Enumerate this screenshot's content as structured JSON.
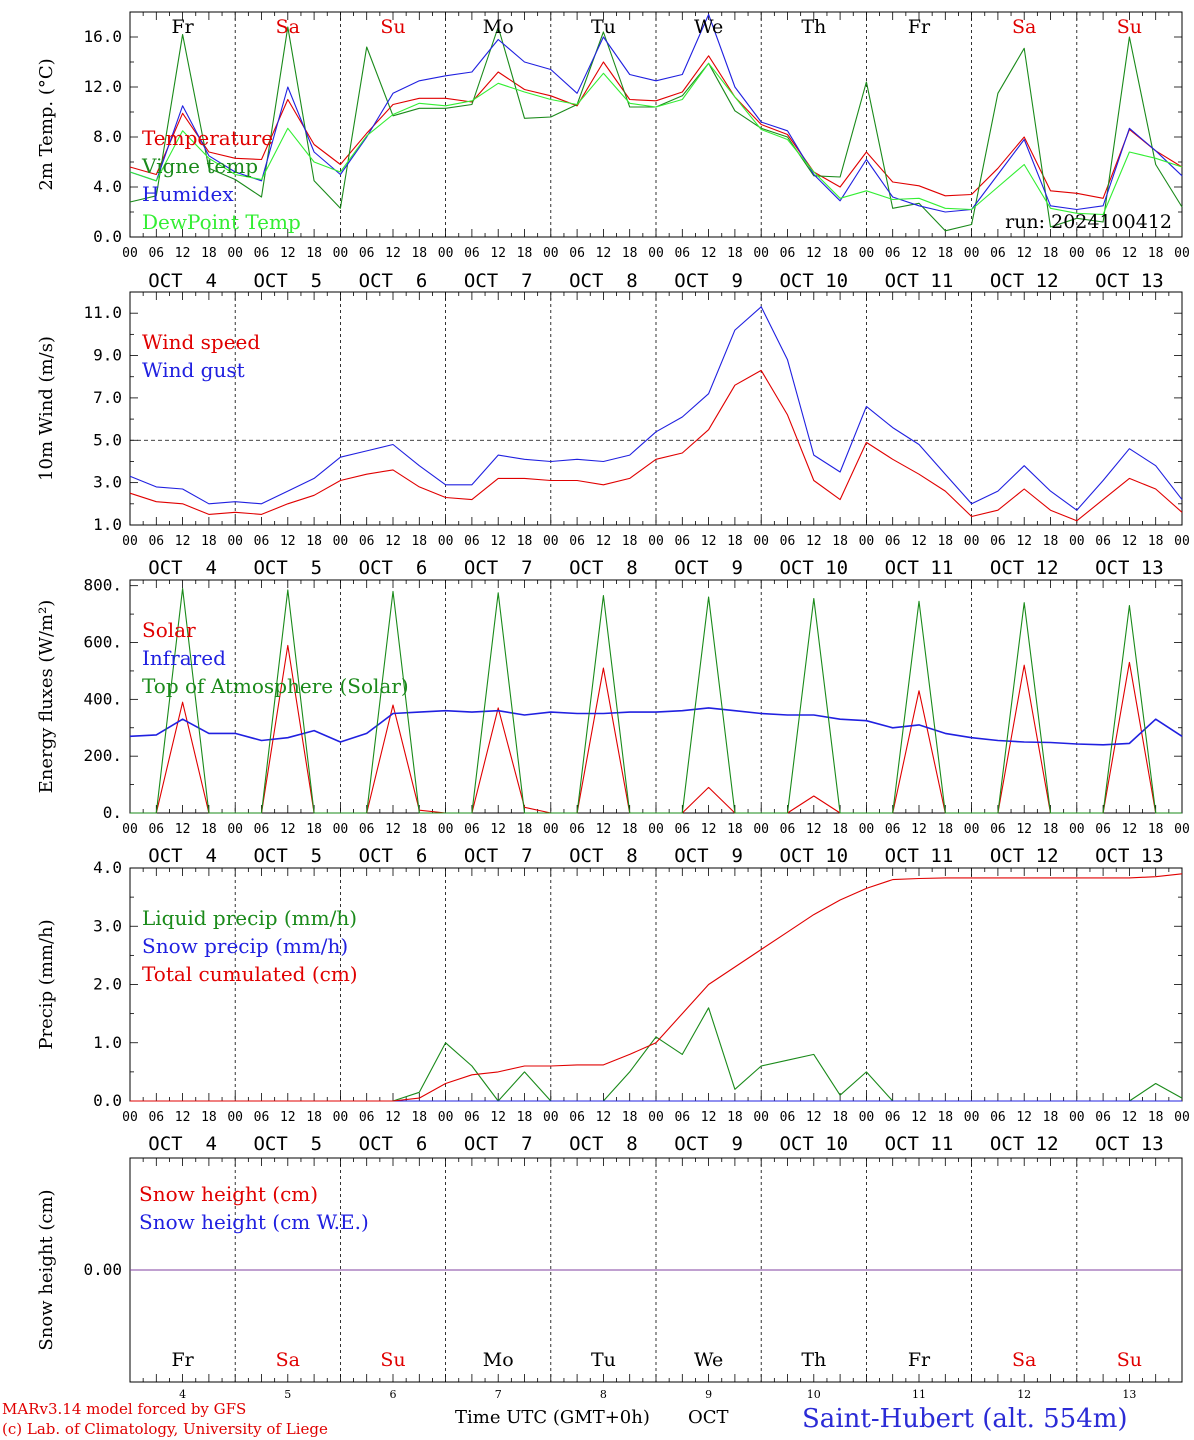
{
  "chart_data": [
    {
      "type": "line",
      "panel": "temperature",
      "ylabel": "2m Temp. (°C)",
      "ylim": [
        0,
        18
      ],
      "yticks": [
        "0.0",
        "4.0",
        "8.0",
        "12.0",
        "16.0"
      ],
      "ytick_values": [
        0,
        4,
        8,
        12,
        16
      ],
      "hours": [
        0,
        6,
        12,
        18,
        24,
        30,
        36,
        42,
        48,
        54,
        60,
        66,
        72,
        78,
        84,
        90,
        96,
        102,
        108,
        114,
        120,
        126,
        132,
        138,
        144,
        150,
        156,
        162,
        168,
        174,
        180,
        186,
        192,
        198,
        204,
        210,
        216,
        222,
        228,
        234,
        240
      ],
      "run_label": "run: 2024100412",
      "series": [
        {
          "name": "Temperature",
          "color": "#e00000",
          "values": [
            5.6,
            5.0,
            9.9,
            6.8,
            6.3,
            6.2,
            11.0,
            7.4,
            5.8,
            8.3,
            10.6,
            11.1,
            11.1,
            10.8,
            13.2,
            11.8,
            11.3,
            10.5,
            14.0,
            11.0,
            10.9,
            11.6,
            14.5,
            11.2,
            9.0,
            8.2,
            5.2,
            4.0,
            6.8,
            4.4,
            4.1,
            3.3,
            3.4,
            5.5,
            8.0,
            3.7,
            3.5,
            3.1,
            8.6,
            6.9,
            5.6
          ]
        },
        {
          "name": "Vigne temp",
          "color": "#1a8a1a",
          "values": [
            2.8,
            3.3,
            16.2,
            5.5,
            4.6,
            3.2,
            16.8,
            4.5,
            2.3,
            15.2,
            9.7,
            10.3,
            10.3,
            10.6,
            16.8,
            9.5,
            9.6,
            10.6,
            16.4,
            10.4,
            10.4,
            11.3,
            13.9,
            10.1,
            8.7,
            8.0,
            4.9,
            4.8,
            12.4,
            2.3,
            2.7,
            0.5,
            1.0,
            11.5,
            15.1,
            0.8,
            1.5,
            1.2,
            16.0,
            5.8,
            2.4
          ]
        },
        {
          "name": "Humidex",
          "color": "#2020e0",
          "values": [
            5.2,
            4.5,
            10.5,
            6.5,
            5.2,
            4.5,
            12.0,
            6.8,
            5.0,
            8.0,
            11.5,
            12.5,
            12.9,
            13.2,
            15.8,
            14.0,
            13.4,
            11.5,
            16.0,
            13.0,
            12.5,
            13.0,
            17.8,
            12.0,
            9.2,
            8.5,
            5.0,
            2.9,
            6.2,
            3.2,
            2.5,
            2.0,
            2.2,
            5.0,
            7.8,
            2.5,
            2.2,
            2.5,
            8.7,
            6.9,
            4.9
          ]
        },
        {
          "name": "DewPoint Temp",
          "color": "#33ee33",
          "values": [
            5.2,
            4.5,
            8.5,
            6.3,
            5.0,
            4.6,
            8.7,
            6.0,
            5.2,
            8.1,
            9.8,
            10.7,
            10.5,
            10.9,
            12.3,
            11.6,
            11.0,
            10.6,
            13.1,
            10.7,
            10.4,
            11.0,
            13.9,
            11.2,
            8.6,
            7.8,
            5.2,
            3.1,
            3.7,
            3.0,
            3.1,
            2.3,
            2.2,
            4.0,
            5.8,
            2.3,
            1.9,
            1.8,
            6.8,
            6.3,
            5.6
          ]
        }
      ]
    },
    {
      "type": "line",
      "panel": "wind",
      "ylabel": "10m Wind (m/s)",
      "ylim": [
        1,
        12
      ],
      "yticks": [
        "1.0",
        "3.0",
        "5.0",
        "7.0",
        "9.0",
        "11.0"
      ],
      "ytick_values": [
        1,
        3,
        5,
        7,
        9,
        11
      ],
      "reference_line": 5,
      "hours": [
        0,
        6,
        12,
        18,
        24,
        30,
        36,
        42,
        48,
        54,
        60,
        66,
        72,
        78,
        84,
        90,
        96,
        102,
        108,
        114,
        120,
        126,
        132,
        138,
        144,
        150,
        156,
        162,
        168,
        174,
        180,
        186,
        192,
        198,
        204,
        210,
        216,
        222,
        228,
        234,
        240
      ],
      "series": [
        {
          "name": "Wind speed",
          "color": "#e00000",
          "values": [
            2.5,
            2.1,
            2.0,
            1.5,
            1.6,
            1.5,
            2.0,
            2.4,
            3.1,
            3.4,
            3.6,
            2.8,
            2.3,
            2.2,
            3.2,
            3.2,
            3.1,
            3.1,
            2.9,
            3.2,
            4.1,
            4.4,
            5.5,
            7.6,
            8.3,
            6.2,
            3.1,
            2.2,
            4.9,
            4.1,
            3.4,
            2.6,
            1.4,
            1.7,
            2.7,
            1.7,
            1.2,
            2.2,
            3.2,
            2.7,
            1.6
          ]
        },
        {
          "name": "Wind gust",
          "color": "#2020e0",
          "values": [
            3.3,
            2.8,
            2.7,
            2.0,
            2.1,
            2.0,
            2.6,
            3.2,
            4.2,
            4.5,
            4.8,
            3.8,
            2.9,
            2.9,
            4.3,
            4.1,
            4.0,
            4.1,
            4.0,
            4.3,
            5.4,
            6.1,
            7.2,
            10.2,
            11.3,
            8.8,
            4.3,
            3.5,
            6.6,
            5.6,
            4.8,
            3.4,
            2.0,
            2.6,
            3.8,
            2.6,
            1.7,
            3.1,
            4.6,
            3.8,
            2.2
          ]
        }
      ]
    },
    {
      "type": "line",
      "panel": "energy",
      "ylabel": "Energy fluxes (W/m²)",
      "ylim": [
        0,
        800
      ],
      "yticks": [
        "0.",
        "200.",
        "400.",
        "600.",
        "800."
      ],
      "ytick_values": [
        0,
        200,
        400,
        600,
        800
      ],
      "hours": [
        0,
        6,
        12,
        18,
        24,
        30,
        36,
        42,
        48,
        54,
        60,
        66,
        72,
        78,
        84,
        90,
        96,
        102,
        108,
        114,
        120,
        126,
        132,
        138,
        144,
        150,
        156,
        162,
        168,
        174,
        180,
        186,
        192,
        198,
        204,
        210,
        216,
        222,
        228,
        234,
        240
      ],
      "series": [
        {
          "name": "Solar",
          "color": "#e00000",
          "values": [
            0,
            0,
            390,
            0,
            0,
            0,
            590,
            0,
            0,
            0,
            380,
            10,
            0,
            0,
            370,
            20,
            0,
            0,
            510,
            0,
            0,
            0,
            90,
            0,
            0,
            0,
            60,
            0,
            0,
            0,
            430,
            0,
            0,
            0,
            520,
            0,
            0,
            0,
            530,
            0,
            0
          ]
        },
        {
          "name": "Infrared",
          "color": "#2020e0",
          "values": [
            270,
            275,
            330,
            280,
            280,
            255,
            265,
            290,
            250,
            280,
            350,
            355,
            360,
            355,
            360,
            345,
            355,
            350,
            350,
            355,
            355,
            360,
            370,
            360,
            350,
            345,
            345,
            330,
            325,
            300,
            310,
            280,
            265,
            255,
            250,
            248,
            243,
            240,
            245,
            330,
            270
          ]
        },
        {
          "name": "Top of Atmosphere (Solar)",
          "color": "#1a8a1a",
          "values": [
            0,
            0,
            790,
            0,
            0,
            0,
            785,
            0,
            0,
            0,
            780,
            0,
            0,
            0,
            775,
            0,
            0,
            0,
            765,
            0,
            0,
            0,
            760,
            0,
            0,
            0,
            755,
            0,
            0,
            0,
            745,
            0,
            0,
            0,
            740,
            0,
            0,
            0,
            730,
            0,
            0
          ]
        }
      ]
    },
    {
      "type": "line",
      "panel": "precip",
      "ylabel": "Precip (mm/h)",
      "ylim": [
        0,
        4
      ],
      "yticks": [
        "0.0",
        "1.0",
        "2.0",
        "3.0",
        "4.0"
      ],
      "ytick_values": [
        0,
        1,
        2,
        3,
        4
      ],
      "hours": [
        0,
        6,
        12,
        18,
        24,
        30,
        36,
        42,
        48,
        54,
        60,
        66,
        72,
        78,
        84,
        90,
        96,
        102,
        108,
        114,
        120,
        126,
        132,
        138,
        144,
        150,
        156,
        162,
        168,
        174,
        180,
        186,
        192,
        198,
        204,
        210,
        216,
        222,
        228,
        234,
        240
      ],
      "series": [
        {
          "name": "Liquid precip (mm/h)",
          "color": "#1a8a1a",
          "values": [
            0,
            0,
            0,
            0,
            0,
            0,
            0,
            0,
            0,
            0,
            0,
            0.15,
            1.0,
            0.6,
            0,
            0.5,
            0,
            0,
            0,
            0.5,
            1.1,
            0.8,
            1.6,
            0.2,
            0.6,
            0.7,
            0.8,
            0.1,
            0.5,
            0,
            0,
            0,
            0,
            0,
            0,
            0,
            0,
            0,
            0,
            0.3,
            0.05
          ]
        },
        {
          "name": "Snow precip (mm/h)",
          "color": "#2020e0",
          "values": [
            0,
            0,
            0,
            0,
            0,
            0,
            0,
            0,
            0,
            0,
            0,
            0,
            0,
            0,
            0,
            0,
            0,
            0,
            0,
            0,
            0,
            0,
            0,
            0,
            0,
            0,
            0,
            0,
            0,
            0,
            0,
            0,
            0,
            0,
            0,
            0,
            0,
            0,
            0,
            0,
            0
          ]
        },
        {
          "name": "Total cumulated (cm)",
          "color": "#e00000",
          "values": [
            0,
            0,
            0,
            0,
            0,
            0,
            0,
            0,
            0,
            0,
            0,
            0.05,
            0.3,
            0.45,
            0.5,
            0.6,
            0.6,
            0.62,
            0.62,
            0.8,
            1.0,
            1.5,
            2.0,
            2.3,
            2.6,
            2.9,
            3.2,
            3.45,
            3.65,
            3.8,
            3.82,
            3.83,
            3.83,
            3.83,
            3.83,
            3.83,
            3.83,
            3.83,
            3.83,
            3.85,
            3.9
          ]
        }
      ]
    },
    {
      "type": "line",
      "panel": "snow",
      "ylabel": "Snow height (cm)",
      "yticks": [
        "0.00"
      ],
      "ytick_values": [
        0
      ],
      "hours": [
        0,
        240
      ],
      "series": [
        {
          "name": "Snow height (cm)",
          "color": "#e00000",
          "values": [
            0,
            0
          ]
        },
        {
          "name": "Snow height (cm W.E.)",
          "color": "#2020e0",
          "values": [
            0,
            0
          ]
        }
      ]
    }
  ],
  "x_axis": {
    "hour_ticks": [
      "00",
      "06",
      "12",
      "18"
    ],
    "date_labels": [
      "OCT  4",
      "OCT  5",
      "OCT  6",
      "OCT  7",
      "OCT  8",
      "OCT  9",
      "OCT 10",
      "OCT 11",
      "OCT 12",
      "OCT 13"
    ],
    "weekdays": [
      {
        "label": "Fr",
        "color": "#000000"
      },
      {
        "label": "Sa",
        "color": "#e00000"
      },
      {
        "label": "Su",
        "color": "#e00000"
      },
      {
        "label": "Mo",
        "color": "#000000"
      },
      {
        "label": "Tu",
        "color": "#000000"
      },
      {
        "label": "We",
        "color": "#000000"
      },
      {
        "label": "Th",
        "color": "#000000"
      },
      {
        "label": "Fr",
        "color": "#000000"
      },
      {
        "label": "Sa",
        "color": "#e00000"
      },
      {
        "label": "Su",
        "color": "#e00000"
      }
    ],
    "day_numbers": [
      "4",
      "5",
      "6",
      "7",
      "8",
      "9",
      "10",
      "11",
      "12",
      "13"
    ]
  },
  "footer": {
    "model_line": "MARv3.14 model forced by GFS",
    "copyright_line": "(c) Lab. of Climatology, University of Liege",
    "time_label": "Time UTC (GMT+0h)",
    "month_label": "OCT",
    "station": "Saint-Hubert (alt. 554m)"
  },
  "colors": {
    "red": "#e00000",
    "green": "#1a8a1a",
    "blue": "#2020e0",
    "lightgreen": "#33ee33",
    "purple": "#8040a0"
  }
}
